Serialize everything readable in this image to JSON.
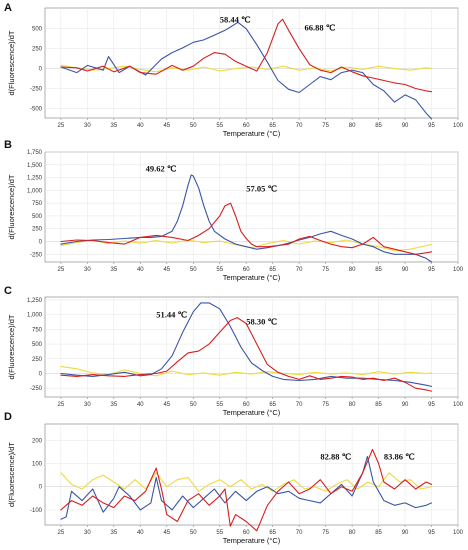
{
  "colors": {
    "blue": "#3a55a6",
    "red": "#d81e1e",
    "yellow": "#ecdb3f",
    "frame": "#8e8e8e",
    "grid": "#e4e4e4"
  },
  "chart_data": [
    {
      "type": "line",
      "panel": "A",
      "xlabel": "Temperature (°C)",
      "ylabel": "d(Fluorescence)/dT",
      "xlim": [
        22,
        100
      ],
      "ylim": [
        -620,
        760
      ],
      "x_ticks": [
        "25",
        "30",
        "35",
        "40",
        "45",
        "50",
        "55",
        "60",
        "65",
        "70",
        "75",
        "80",
        "85",
        "90",
        "95",
        "100"
      ],
      "y_ticks": [
        {
          "v": 500,
          "t": "500"
        },
        {
          "v": 250,
          "t": "250"
        },
        {
          "v": 0,
          "t": "0"
        },
        {
          "v": -250,
          "t": "-250"
        },
        {
          "v": -500,
          "t": "-500"
        }
      ],
      "grid": true,
      "annotations": [
        {
          "text": "58.44 ℃",
          "x": 55,
          "y": 580
        },
        {
          "text": "66.88 ℃",
          "x": 71,
          "y": 480
        }
      ],
      "series": [
        {
          "color": "blue",
          "x": [
            25,
            28,
            30,
            33,
            34,
            36,
            38,
            41,
            44,
            46,
            48,
            50,
            52,
            54,
            56,
            57,
            58.44,
            60,
            62,
            64,
            66,
            68,
            70,
            72,
            74,
            76,
            78,
            80,
            82,
            84,
            86,
            88,
            90,
            92,
            94,
            95
          ],
          "y": [
            20,
            -50,
            40,
            -20,
            150,
            -50,
            30,
            -80,
            120,
            200,
            260,
            330,
            360,
            420,
            480,
            520,
            580,
            500,
            300,
            80,
            -150,
            -260,
            -300,
            -200,
            -100,
            -140,
            -50,
            -20,
            -50,
            -200,
            -280,
            -420,
            -330,
            -390,
            -560,
            -630
          ]
        },
        {
          "color": "red",
          "x": [
            25,
            28,
            30,
            33,
            35,
            38,
            40,
            43,
            46,
            48,
            50,
            52,
            54,
            56,
            58,
            60,
            62,
            64,
            66,
            66.88,
            68,
            70,
            72,
            74,
            76,
            78,
            80,
            82,
            84,
            86,
            88,
            90,
            92,
            94,
            95
          ],
          "y": [
            20,
            10,
            -30,
            30,
            -40,
            30,
            -50,
            -70,
            40,
            -20,
            30,
            130,
            200,
            180,
            90,
            30,
            -30,
            200,
            560,
            620,
            480,
            250,
            50,
            -20,
            -50,
            20,
            -40,
            -90,
            -120,
            -150,
            -180,
            -200,
            -250,
            -280,
            -290
          ]
        },
        {
          "color": "yellow",
          "x": [
            25,
            28,
            31,
            34,
            37,
            40,
            43,
            46,
            49,
            52,
            55,
            58,
            61,
            64,
            67,
            70,
            73,
            76,
            79,
            82,
            85,
            88,
            91,
            94,
            95
          ],
          "y": [
            40,
            10,
            -20,
            0,
            30,
            -10,
            -40,
            10,
            -20,
            20,
            -30,
            0,
            20,
            -10,
            30,
            -20,
            10,
            -30,
            20,
            -10,
            30,
            0,
            -20,
            10,
            0
          ]
        }
      ]
    },
    {
      "type": "line",
      "panel": "B",
      "xlabel": "Temperature (°C)",
      "ylabel": "d(Fluorescence)/dT",
      "xlim": [
        22,
        100
      ],
      "ylim": [
        -400,
        1750
      ],
      "x_ticks": [
        "25",
        "30",
        "35",
        "40",
        "45",
        "50",
        "55",
        "60",
        "65",
        "70",
        "75",
        "80",
        "85",
        "90",
        "95",
        "100"
      ],
      "y_ticks": [
        {
          "v": 1750,
          "t": "1,750"
        },
        {
          "v": 1500,
          "t": "1,500"
        },
        {
          "v": 1250,
          "t": "1,250"
        },
        {
          "v": 1000,
          "t": "1,000"
        },
        {
          "v": 750,
          "t": "750"
        },
        {
          "v": 500,
          "t": "500"
        },
        {
          "v": 250,
          "t": "250"
        },
        {
          "v": 0,
          "t": "0"
        },
        {
          "v": -250,
          "t": "-250"
        }
      ],
      "grid": true,
      "annotations": [
        {
          "text": "49.62 ℃",
          "x": 41,
          "y": 1370
        },
        {
          "text": "57.05 ℃",
          "x": 60,
          "y": 980
        }
      ],
      "series": [
        {
          "color": "blue",
          "x": [
            25,
            28,
            31,
            34,
            37,
            40,
            42,
            44,
            46,
            47,
            48,
            49,
            49.62,
            50,
            51,
            52,
            53,
            54,
            56,
            58,
            60,
            62,
            64,
            66,
            68,
            70,
            72,
            74,
            76,
            78,
            80,
            82,
            84,
            86,
            88,
            90,
            92,
            94,
            95
          ],
          "y": [
            -50,
            0,
            30,
            40,
            60,
            80,
            80,
            100,
            200,
            400,
            700,
            1100,
            1300,
            1280,
            1050,
            700,
            400,
            200,
            50,
            -50,
            -100,
            -150,
            -120,
            -80,
            -30,
            30,
            80,
            150,
            200,
            120,
            50,
            -50,
            -100,
            -200,
            -250,
            -250,
            -250,
            -330,
            -400
          ]
        },
        {
          "color": "red",
          "x": [
            25,
            28,
            31,
            34,
            37,
            40,
            43,
            46,
            49,
            51,
            53,
            55,
            56,
            57.05,
            58,
            59,
            60,
            61,
            62,
            64,
            66,
            68,
            70,
            72,
            74,
            76,
            78,
            80,
            82,
            84,
            86,
            88,
            90,
            92,
            94,
            95
          ],
          "y": [
            0,
            30,
            20,
            -20,
            -50,
            80,
            120,
            80,
            20,
            120,
            250,
            500,
            700,
            750,
            500,
            200,
            60,
            -50,
            -100,
            -100,
            -80,
            -50,
            50,
            100,
            20,
            -50,
            -100,
            -120,
            -50,
            80,
            -100,
            -150,
            -200,
            -250,
            -220,
            -200
          ]
        },
        {
          "color": "yellow",
          "x": [
            25,
            28,
            31,
            34,
            37,
            40,
            43,
            46,
            49,
            52,
            55,
            58,
            61,
            64,
            67,
            70,
            73,
            76,
            79,
            82,
            85,
            88,
            91,
            94,
            95
          ],
          "y": [
            -80,
            -20,
            30,
            -40,
            10,
            -30,
            20,
            -30,
            30,
            -20,
            10,
            -60,
            -120,
            -40,
            20,
            -50,
            10,
            -20,
            30,
            -50,
            -100,
            -180,
            -150,
            -80,
            -60
          ]
        }
      ]
    },
    {
      "type": "line",
      "panel": "C",
      "xlabel": "Temperature (°C)",
      "ylabel": "d(Fluorescence)/dT",
      "xlim": [
        22,
        100
      ],
      "ylim": [
        -400,
        1300
      ],
      "x_ticks": [
        "25",
        "30",
        "35",
        "40",
        "45",
        "50",
        "55",
        "60",
        "65",
        "70",
        "75",
        "80",
        "85",
        "90",
        "95",
        "100"
      ],
      "y_ticks": [
        {
          "v": 1250,
          "t": "1,250"
        },
        {
          "v": 1000,
          "t": "1,000"
        },
        {
          "v": 750,
          "t": "750"
        },
        {
          "v": 500,
          "t": "500"
        },
        {
          "v": 250,
          "t": "250"
        },
        {
          "v": 0,
          "t": "0"
        },
        {
          "v": -250,
          "t": "-250"
        }
      ],
      "grid": true,
      "annotations": [
        {
          "text": "51.44 ℃",
          "x": 43,
          "y": 950
        },
        {
          "text": "58.30 ℃",
          "x": 60,
          "y": 830
        }
      ],
      "series": [
        {
          "color": "blue",
          "x": [
            25,
            28,
            31,
            34,
            37,
            40,
            42,
            44,
            46,
            48,
            50,
            51.44,
            53,
            55,
            57,
            59,
            61,
            63,
            65,
            67,
            70,
            73,
            76,
            79,
            82,
            85,
            88,
            91,
            94,
            95
          ],
          "y": [
            0,
            -30,
            -50,
            -20,
            20,
            -40,
            -20,
            80,
            300,
            700,
            1050,
            1200,
            1200,
            1100,
            800,
            450,
            180,
            50,
            -50,
            -100,
            -120,
            -100,
            -50,
            -80,
            -80,
            -100,
            -120,
            -150,
            -200,
            -220
          ]
        },
        {
          "color": "red",
          "x": [
            25,
            28,
            31,
            34,
            37,
            40,
            43,
            45,
            47,
            49,
            51,
            53,
            55,
            57,
            58.3,
            60,
            62,
            64,
            66,
            68,
            70,
            72,
            74,
            76,
            78,
            80,
            82,
            84,
            86,
            88,
            90,
            92,
            94,
            95
          ],
          "y": [
            -30,
            -50,
            -20,
            -40,
            -50,
            -20,
            0,
            40,
            200,
            350,
            380,
            500,
            700,
            900,
            950,
            850,
            500,
            150,
            20,
            -50,
            -100,
            -40,
            -100,
            -80,
            -50,
            -60,
            -100,
            -80,
            -120,
            -80,
            -150,
            -250,
            -280,
            -300
          ]
        },
        {
          "color": "yellow",
          "x": [
            25,
            28,
            31,
            34,
            37,
            40,
            43,
            46,
            49,
            52,
            55,
            58,
            61,
            64,
            67,
            70,
            73,
            76,
            79,
            82,
            85,
            88,
            91,
            94,
            95
          ],
          "y": [
            120,
            80,
            10,
            -20,
            60,
            0,
            -40,
            40,
            -20,
            10,
            -30,
            20,
            -10,
            30,
            0,
            -20,
            20,
            -10,
            10,
            -20,
            30,
            -10,
            20,
            0,
            10
          ]
        }
      ]
    },
    {
      "type": "line",
      "panel": "D",
      "xlabel": "Temperature (°C)",
      "ylabel": "d(Fluorescence)/dT",
      "xlim": [
        22,
        100
      ],
      "ylim": [
        -165,
        270
      ],
      "x_ticks": [
        "25",
        "30",
        "35",
        "40",
        "45",
        "50",
        "55",
        "60",
        "65",
        "70",
        "75",
        "80",
        "85",
        "90",
        "95",
        "100"
      ],
      "y_ticks": [
        {
          "v": 200,
          "t": "200"
        },
        {
          "v": 100,
          "t": "100"
        },
        {
          "v": 0,
          "t": "0"
        },
        {
          "v": -100,
          "t": "-100"
        }
      ],
      "grid": true,
      "annotations": [
        {
          "text": "82.88 ℃",
          "x": 74,
          "y": 118
        },
        {
          "text": "83.86 ℃",
          "x": 86,
          "y": 118
        }
      ],
      "series": [
        {
          "color": "blue",
          "x": [
            25,
            26,
            27,
            29,
            31,
            33,
            35,
            36,
            38,
            40,
            42,
            43,
            44,
            46,
            48,
            50,
            52,
            54,
            56,
            58,
            60,
            62,
            64,
            66,
            68,
            70,
            72,
            74,
            76,
            78,
            80,
            82,
            82.88,
            84,
            86,
            88,
            90,
            92,
            94,
            95
          ],
          "y": [
            -140,
            -130,
            -20,
            -60,
            -10,
            -110,
            -50,
            0,
            -40,
            -100,
            -70,
            40,
            -60,
            -100,
            -40,
            -90,
            -50,
            -10,
            -70,
            -20,
            -60,
            -20,
            0,
            -30,
            -20,
            -50,
            -60,
            -70,
            -30,
            10,
            -40,
            60,
            130,
            20,
            -60,
            -80,
            -70,
            -90,
            -80,
            -70
          ]
        },
        {
          "color": "red",
          "x": [
            25,
            27,
            29,
            31,
            33,
            35,
            37,
            39,
            41,
            43,
            44,
            45,
            47,
            49,
            51,
            53,
            55,
            56,
            57,
            58,
            60,
            62,
            64,
            66,
            68,
            70,
            72,
            74,
            76,
            78,
            80,
            82,
            83.86,
            85,
            86,
            88,
            90,
            92,
            94,
            95
          ],
          "y": [
            -100,
            -60,
            -80,
            -40,
            -70,
            -90,
            -40,
            -60,
            -20,
            80,
            -10,
            -120,
            -150,
            -60,
            -30,
            -80,
            -40,
            -10,
            -170,
            -120,
            -150,
            -190,
            -80,
            -20,
            20,
            -30,
            -10,
            30,
            -30,
            0,
            -20,
            60,
            160,
            100,
            20,
            -10,
            30,
            -10,
            20,
            10
          ]
        },
        {
          "color": "yellow",
          "x": [
            25,
            27,
            29,
            31,
            33,
            35,
            37,
            39,
            41,
            43,
            45,
            47,
            49,
            51,
            53,
            55,
            57,
            59,
            61,
            63,
            65,
            67,
            69,
            71,
            73,
            75,
            77,
            79,
            81,
            83,
            85,
            87,
            89,
            91,
            93,
            95
          ],
          "y": [
            60,
            10,
            -10,
            30,
            50,
            20,
            -10,
            30,
            -10,
            60,
            0,
            30,
            40,
            -20,
            10,
            30,
            0,
            30,
            -10,
            10,
            -20,
            10,
            30,
            -10,
            0,
            -20,
            10,
            30,
            -10,
            20,
            0,
            60,
            20,
            30,
            -10,
            0
          ]
        }
      ]
    }
  ]
}
